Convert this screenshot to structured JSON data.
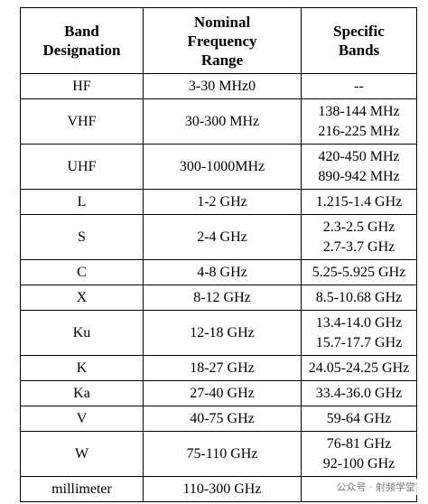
{
  "table": {
    "header": [
      [
        "Band",
        "Designation"
      ],
      [
        "Nominal",
        "Frequency",
        "Range"
      ],
      [
        "Specific",
        "Bands"
      ]
    ],
    "rows": [
      [
        [
          "HF"
        ],
        [
          "3-30 MHz0"
        ],
        [
          "--"
        ]
      ],
      [
        [
          "VHF"
        ],
        [
          "30-300 MHz"
        ],
        [
          "138-144 MHz",
          "216-225 MHz"
        ]
      ],
      [
        [
          "UHF"
        ],
        [
          "300-1000MHz"
        ],
        [
          "420-450 MHz",
          "890-942 MHz"
        ]
      ],
      [
        [
          "L"
        ],
        [
          "1-2 GHz"
        ],
        [
          "1.215-1.4 GHz"
        ]
      ],
      [
        [
          "S"
        ],
        [
          "2-4 GHz"
        ],
        [
          "2.3-2.5 GHz",
          "2.7-3.7 GHz"
        ]
      ],
      [
        [
          "C"
        ],
        [
          "4-8 GHz"
        ],
        [
          "5.25-5.925 GHz"
        ]
      ],
      [
        [
          "X"
        ],
        [
          "8-12 GHz"
        ],
        [
          "8.5-10.68 GHz"
        ]
      ],
      [
        [
          "Ku"
        ],
        [
          "12-18 GHz"
        ],
        [
          "13.4-14.0 GHz",
          "15.7-17.7 GHz"
        ]
      ],
      [
        [
          "K"
        ],
        [
          "18-27 GHz"
        ],
        [
          "24.05-24.25 GHz"
        ]
      ],
      [
        [
          "Ka"
        ],
        [
          "27-40 GHz"
        ],
        [
          "33.4-36.0 GHz"
        ]
      ],
      [
        [
          "V"
        ],
        [
          "40-75 GHz"
        ],
        [
          "59-64 GHz"
        ]
      ],
      [
        [
          "W"
        ],
        [
          "75-110 GHz"
        ],
        [
          "76-81 GHz",
          "92-100 GHz"
        ]
      ],
      [
        [
          "millimeter"
        ],
        [
          "110-300 GHz"
        ],
        [
          "—"
        ]
      ]
    ]
  },
  "watermark": "公众号 · 射频学堂"
}
